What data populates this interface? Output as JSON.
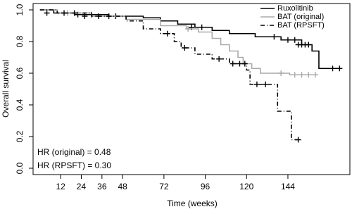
{
  "chart_data": {
    "type": "step",
    "x_label": "Time (weeks)",
    "y_label": "Overall survival",
    "xlim": [
      -4,
      180
    ],
    "ylim": [
      -0.04,
      1.04
    ],
    "xticks": [
      12,
      24,
      36,
      48,
      72,
      96,
      120,
      144
    ],
    "yticks": [
      {
        "value": 0,
        "label": "0.0"
      },
      0.2,
      0.4,
      0.6,
      0.8,
      {
        "value": 1,
        "label": "1.0"
      }
    ],
    "legend": "top-right",
    "annotations": [
      "HR (original) = 0.48",
      "HR (RPSFT) = 0.30"
    ],
    "series": [
      {
        "name": "Ruxolitinib",
        "color": "#000000",
        "dash": "none",
        "x": [
          0,
          8,
          20,
          40,
          60,
          70,
          80,
          90,
          100,
          110,
          125,
          140,
          152,
          158,
          162,
          175
        ],
        "values": [
          1,
          0.98,
          0.97,
          0.96,
          0.95,
          0.93,
          0.91,
          0.89,
          0.87,
          0.85,
          0.83,
          0.81,
          0.78,
          0.74,
          0.63,
          0.63
        ],
        "censor_x": [
          4,
          22,
          30,
          44,
          88,
          94,
          136,
          144,
          148,
          150,
          152,
          154,
          156,
          170,
          174
        ],
        "censor_values": [
          0.98,
          0.97,
          0.97,
          0.96,
          0.89,
          0.89,
          0.83,
          0.81,
          0.81,
          0.78,
          0.78,
          0.78,
          0.78,
          0.63,
          0.63
        ]
      },
      {
        "name": "BAT (original)",
        "color": "#aaaaaa",
        "dash": "none",
        "x": [
          0,
          10,
          30,
          50,
          70,
          85,
          92,
          100,
          105,
          110,
          115,
          118,
          123,
          128,
          145,
          160
        ],
        "values": [
          1,
          0.98,
          0.96,
          0.94,
          0.9,
          0.88,
          0.86,
          0.82,
          0.78,
          0.74,
          0.7,
          0.66,
          0.63,
          0.6,
          0.59,
          0.59
        ],
        "censor_x": [
          16,
          86,
          140,
          148,
          152,
          156,
          160
        ],
        "censor_values": [
          0.98,
          0.88,
          0.6,
          0.59,
          0.59,
          0.59,
          0.59
        ]
      },
      {
        "name": "BAT (RPSFT)",
        "color": "#000000",
        "dash": "6,3,1,3",
        "x": [
          0,
          10,
          30,
          50,
          60,
          70,
          78,
          82,
          90,
          100,
          110,
          120,
          122,
          138,
          146,
          150
        ],
        "values": [
          1,
          0.98,
          0.96,
          0.93,
          0.88,
          0.85,
          0.8,
          0.76,
          0.72,
          0.69,
          0.66,
          0.62,
          0.53,
          0.36,
          0.18,
          0.18
        ],
        "censor_x": [
          14,
          20,
          26,
          34,
          40,
          74,
          84,
          104,
          112,
          116,
          119,
          126,
          131,
          150
        ],
        "censor_values": [
          0.98,
          0.98,
          0.96,
          0.96,
          0.96,
          0.85,
          0.76,
          0.69,
          0.66,
          0.66,
          0.66,
          0.53,
          0.53,
          0.18
        ]
      }
    ]
  }
}
